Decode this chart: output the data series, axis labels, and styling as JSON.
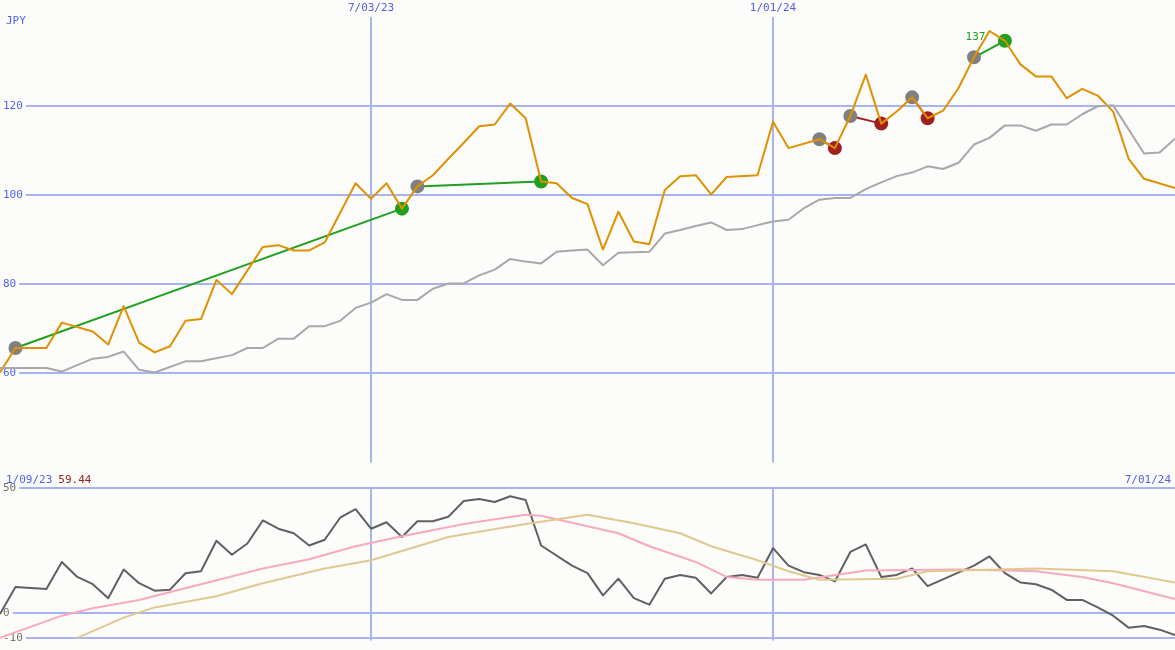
{
  "chart_data": [
    {
      "type": "line",
      "ylabel": "JPY",
      "xlim": [
        "2023-01-16",
        "2024-07-01"
      ],
      "xticks": [
        {
          "value": "2023-07-03",
          "label": "7/03/23"
        },
        {
          "value": "2024-01-01",
          "label": "1/01/24"
        }
      ],
      "ylim": [
        40,
        140
      ],
      "yticks": [
        60,
        80,
        100,
        120
      ],
      "grid": true,
      "legend": false,
      "marker": "none",
      "line_style": "solid",
      "annotations": [
        {
          "text": "137",
          "x": "2024-04-08",
          "y": 136.9
        }
      ],
      "series": [
        {
          "color": "#a8a8a8",
          "x": [
            "2023-01-16",
            "2023-02-06",
            "2023-02-13",
            "2023-02-27",
            "2023-03-06",
            "2023-03-13",
            "2023-03-20",
            "2023-03-27",
            "2023-04-10",
            "2023-04-17",
            "2023-05-01",
            "2023-05-08",
            "2023-05-15",
            "2023-05-22",
            "2023-05-29",
            "2023-06-05",
            "2023-06-12",
            "2023-06-19",
            "2023-06-26",
            "2023-07-03",
            "2023-07-10",
            "2023-07-17",
            "2023-07-24",
            "2023-07-31",
            "2023-08-07",
            "2023-08-14",
            "2023-08-21",
            "2023-08-28",
            "2023-09-04",
            "2023-09-11",
            "2023-09-18",
            "2023-09-25",
            "2023-10-02",
            "2023-10-09",
            "2023-10-16",
            "2023-10-23",
            "2023-11-06",
            "2023-11-13",
            "2023-11-20",
            "2023-11-27",
            "2023-12-04",
            "2023-12-11",
            "2023-12-18",
            "2023-12-25",
            "2024-01-01",
            "2024-01-08",
            "2024-01-15",
            "2024-01-22",
            "2024-01-29",
            "2024-02-05",
            "2024-02-12",
            "2024-02-19",
            "2024-02-26",
            "2024-03-04",
            "2024-03-11",
            "2024-03-18",
            "2024-03-25",
            "2024-04-01",
            "2024-04-08",
            "2024-04-15",
            "2024-04-22",
            "2024-04-29",
            "2024-05-06",
            "2024-05-13",
            "2024-05-20",
            "2024-05-27",
            "2024-06-03",
            "2024-06-17",
            "2024-06-24",
            "2024-07-01"
          ],
          "values": [
            61.2,
            61.2,
            60.4,
            63.3,
            63.7,
            64.9,
            60.8,
            60.2,
            62.7,
            62.7,
            64.1,
            65.7,
            65.7,
            67.8,
            67.8,
            70.6,
            70.6,
            71.8,
            74.7,
            75.9,
            77.8,
            76.5,
            76.5,
            79,
            80.2,
            80.2,
            82,
            83.3,
            85.7,
            85.1,
            84.7,
            87.3,
            87.6,
            87.8,
            84.3,
            87.1,
            87.3,
            91.4,
            92.2,
            93.1,
            93.9,
            92.2,
            92.4,
            93.3,
            94.1,
            94.5,
            97.1,
            99,
            99.4,
            99.4,
            101.4,
            102.9,
            104.3,
            105.1,
            106.5,
            105.9,
            107.3,
            111.4,
            112.9,
            115.7,
            115.7,
            114.5,
            115.9,
            115.9,
            118.2,
            120,
            120.2,
            109.4,
            109.6,
            112.7
          ]
        },
        {
          "color": "#e09000",
          "x": [
            "2023-01-16",
            "2023-01-23",
            "2023-02-06",
            "2023-02-13",
            "2023-02-27",
            "2023-03-06",
            "2023-03-13",
            "2023-03-20",
            "2023-03-27",
            "2023-04-03",
            "2023-04-10",
            "2023-04-17",
            "2023-04-24",
            "2023-05-01",
            "2023-05-15",
            "2023-05-22",
            "2023-05-29",
            "2023-06-05",
            "2023-06-12",
            "2023-06-26",
            "2023-07-03",
            "2023-07-10",
            "2023-07-17",
            "2023-07-24",
            "2023-07-31",
            "2023-08-07",
            "2023-08-14",
            "2023-08-21",
            "2023-08-28",
            "2023-09-04",
            "2023-09-11",
            "2023-09-18",
            "2023-09-25",
            "2023-10-02",
            "2023-10-09",
            "2023-10-16",
            "2023-10-23",
            "2023-10-30",
            "2023-11-06",
            "2023-11-13",
            "2023-11-20",
            "2023-11-27",
            "2023-12-04",
            "2023-12-11",
            "2023-12-25",
            "2024-01-01",
            "2024-01-08",
            "2024-01-22",
            "2024-01-29",
            "2024-02-05",
            "2024-02-12",
            "2024-02-19",
            "2024-02-26",
            "2024-03-04",
            "2024-03-11",
            "2024-03-18",
            "2024-03-25",
            "2024-04-01",
            "2024-04-08",
            "2024-04-15",
            "2024-04-22",
            "2024-04-29",
            "2024-05-06",
            "2024-05-13",
            "2024-05-20",
            "2024-05-27",
            "2024-06-03",
            "2024-06-10",
            "2024-06-17",
            "2024-07-01"
          ],
          "values": [
            60.2,
            65.7,
            65.7,
            71.4,
            69.4,
            66.5,
            75.1,
            66.9,
            64.7,
            66.1,
            71.8,
            72.2,
            81,
            77.8,
            88.4,
            88.8,
            87.6,
            87.6,
            89.4,
            102.7,
            99.2,
            102.7,
            97,
            102,
            104.5,
            108.2,
            111.8,
            115.5,
            115.9,
            120.6,
            117.3,
            103.1,
            102.7,
            99.4,
            98,
            87.8,
            96.3,
            89.6,
            89,
            101.2,
            104.3,
            104.5,
            100.2,
            104.1,
            104.5,
            116.5,
            110.6,
            112.6,
            110.6,
            117.8,
            127.1,
            116.1,
            118.8,
            122,
            117.3,
            119,
            124.1,
            131,
            136.9,
            134.7,
            129.4,
            126.7,
            126.7,
            121.8,
            123.9,
            122.4,
            118.8,
            108.2,
            103.7,
            101.6
          ]
        },
        {
          "color": "#20a020",
          "marker": "circle",
          "x": [
            "2023-01-23",
            "2023-07-17"
          ],
          "values": [
            65.7,
            97
          ],
          "colors": [
            "#808080",
            "#20a020"
          ]
        },
        {
          "color": "#20a020",
          "marker": "circle",
          "x": [
            "2023-07-24",
            "2023-09-18"
          ],
          "values": [
            102,
            103.1
          ],
          "colors": [
            "#808080",
            "#20a020"
          ]
        },
        {
          "color": "#a02020",
          "marker": "circle",
          "x": [
            "2024-01-22",
            "2024-01-29"
          ],
          "values": [
            112.6,
            110.6
          ],
          "colors": [
            "#808080",
            "#a02020"
          ]
        },
        {
          "color": "#a02020",
          "marker": "circle",
          "x": [
            "2024-02-05",
            "2024-02-19"
          ],
          "values": [
            117.8,
            116.1
          ],
          "colors": [
            "#808080",
            "#a02020"
          ]
        },
        {
          "color": "#a02020",
          "marker": "circle",
          "x": [
            "2024-03-04",
            "2024-03-11"
          ],
          "values": [
            122,
            117.3
          ],
          "colors": [
            "#808080",
            "#a02020"
          ]
        },
        {
          "color": "#20a020",
          "marker": "circle",
          "x": [
            "2024-04-01",
            "2024-04-15"
          ],
          "values": [
            131,
            134.7
          ],
          "colors": [
            "#808080",
            "#20a020"
          ]
        }
      ]
    },
    {
      "type": "line",
      "xlim": [
        "2023-01-16",
        "2024-07-01"
      ],
      "xticks": [
        {
          "value": "2023-07-03",
          "label": null
        },
        {
          "value": "2024-01-01",
          "label": null
        }
      ],
      "ylim": [
        -11,
        50
      ],
      "yticks": [
        -10,
        0,
        50
      ],
      "grid": true,
      "legend": false,
      "marker": "none",
      "tick_labels": "y",
      "annotations": [
        "1/09/23",
        "59.44",
        "7/01/24"
      ],
      "series": [
        {
          "color": "#e0c890",
          "x": [
            "2023-02-20",
            "2023-03-13",
            "2023-03-27",
            "2023-04-24",
            "2023-05-15",
            "2023-06-12",
            "2023-07-03",
            "2023-08-07",
            "2023-09-11",
            "2023-10-09",
            "2023-10-30",
            "2023-11-20",
            "2023-12-04",
            "2023-12-25",
            "2024-01-08",
            "2024-01-22",
            "2024-02-26",
            "2024-03-11",
            "2024-04-29",
            "2024-06-03",
            "2024-07-01"
          ],
          "values": [
            -10,
            -1.9,
            2.2,
            6.7,
            11.9,
            17.8,
            21.1,
            30.4,
            35.6,
            39.3,
            35.9,
            31.9,
            26.7,
            21.1,
            16.7,
            13.3,
            13.7,
            16.7,
            17.8,
            16.7,
            12.2
          ]
        },
        {
          "color": "#f8a8c0",
          "x": [
            "2023-01-16",
            "2023-02-13",
            "2023-02-27",
            "2023-03-20",
            "2023-04-17",
            "2023-05-15",
            "2023-06-05",
            "2023-06-26",
            "2023-07-17",
            "2023-08-14",
            "2023-09-11",
            "2023-09-18",
            "2023-10-16",
            "2023-10-23",
            "2023-11-06",
            "2023-11-27",
            "2023-12-11",
            "2023-12-25",
            "2024-01-15",
            "2024-02-12",
            "2024-03-25",
            "2024-04-29",
            "2024-05-20",
            "2024-06-03",
            "2024-07-01"
          ],
          "values": [
            -10,
            -1.1,
            1.9,
            5.2,
            11.5,
            17.8,
            21.5,
            26.7,
            30.7,
            35.6,
            39.3,
            38.9,
            33.3,
            31.9,
            26.7,
            20.4,
            14.4,
            13.3,
            13.3,
            17,
            17.4,
            16.7,
            14.4,
            11.9,
            5.6
          ]
        },
        {
          "color": "#606060",
          "x": [
            "2023-01-16",
            "2023-01-23",
            "2023-02-06",
            "2023-02-13",
            "2023-02-20",
            "2023-02-27",
            "2023-03-06",
            "2023-03-13",
            "2023-03-20",
            "2023-03-27",
            "2023-04-03",
            "2023-04-10",
            "2023-04-17",
            "2023-04-24",
            "2023-05-01",
            "2023-05-08",
            "2023-05-15",
            "2023-05-22",
            "2023-05-29",
            "2023-06-05",
            "2023-06-12",
            "2023-06-19",
            "2023-06-26",
            "2023-07-03",
            "2023-07-10",
            "2023-07-17",
            "2023-07-24",
            "2023-07-31",
            "2023-08-07",
            "2023-08-14",
            "2023-08-21",
            "2023-08-28",
            "2023-09-04",
            "2023-09-11",
            "2023-09-18",
            "2023-10-02",
            "2023-10-09",
            "2023-10-16",
            "2023-10-23",
            "2023-10-30",
            "2023-11-06",
            "2023-11-13",
            "2023-11-20",
            "2023-11-27",
            "2023-12-04",
            "2023-12-11",
            "2023-12-18",
            "2023-12-25",
            "2024-01-01",
            "2024-01-08",
            "2024-01-15",
            "2024-01-22",
            "2024-01-29",
            "2024-02-05",
            "2024-02-12",
            "2024-02-19",
            "2024-02-26",
            "2024-03-04",
            "2024-03-11",
            "2024-04-01",
            "2024-04-08",
            "2024-04-15",
            "2024-04-22",
            "2024-04-29",
            "2024-05-06",
            "2024-05-13",
            "2024-05-20",
            "2024-05-27",
            "2024-06-03",
            "2024-06-10",
            "2024-06-17",
            "2024-06-24",
            "2024-07-01"
          ],
          "values": [
            -0.4,
            10.4,
            9.6,
            20.4,
            14.4,
            11.5,
            5.9,
            17.4,
            11.9,
            8.9,
            9.3,
            15.9,
            16.7,
            28.9,
            23.3,
            27.8,
            37,
            33.7,
            31.9,
            27,
            29.3,
            38.1,
            41.5,
            33.7,
            36.3,
            30.4,
            36.7,
            36.7,
            38.5,
            44.8,
            45.6,
            44.4,
            46.7,
            45.2,
            27,
            18.9,
            15.9,
            7,
            13.7,
            5.9,
            3.3,
            13.7,
            15.2,
            14.1,
            7.8,
            14.4,
            15.2,
            14.1,
            25.9,
            18.9,
            16.3,
            15.2,
            12.6,
            24.4,
            27.4,
            14.4,
            15.2,
            17.8,
            10.7,
            18.9,
            22.6,
            15.9,
            12.2,
            11.5,
            9.3,
            5.2,
            5.2,
            2.2,
            -1.1,
            -5.9,
            -5.2,
            -6.7,
            -8.9
          ]
        }
      ]
    }
  ]
}
